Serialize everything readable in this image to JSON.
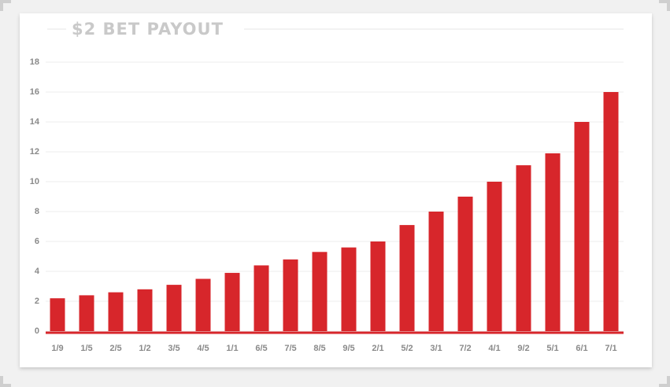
{
  "chart_data": {
    "type": "bar",
    "title": "$2 BET PAYOUT",
    "categories": [
      "1/9",
      "1/5",
      "2/5",
      "1/2",
      "3/5",
      "4/5",
      "1/1",
      "6/5",
      "7/5",
      "8/5",
      "9/5",
      "2/1",
      "5/2",
      "3/1",
      "7/2",
      "4/1",
      "9/2",
      "5/1",
      "6/1",
      "7/1"
    ],
    "values": [
      2.2,
      2.4,
      2.6,
      2.8,
      3.1,
      3.5,
      3.9,
      4.4,
      4.8,
      5.3,
      5.6,
      6,
      7.1,
      8,
      9,
      10,
      11.1,
      11.9,
      14,
      16
    ],
    "color": "#d7262b",
    "ylim": [
      0,
      18
    ],
    "yticks": [
      0,
      2,
      4,
      6,
      8,
      10,
      12,
      14,
      16,
      18
    ],
    "grid": true
  }
}
